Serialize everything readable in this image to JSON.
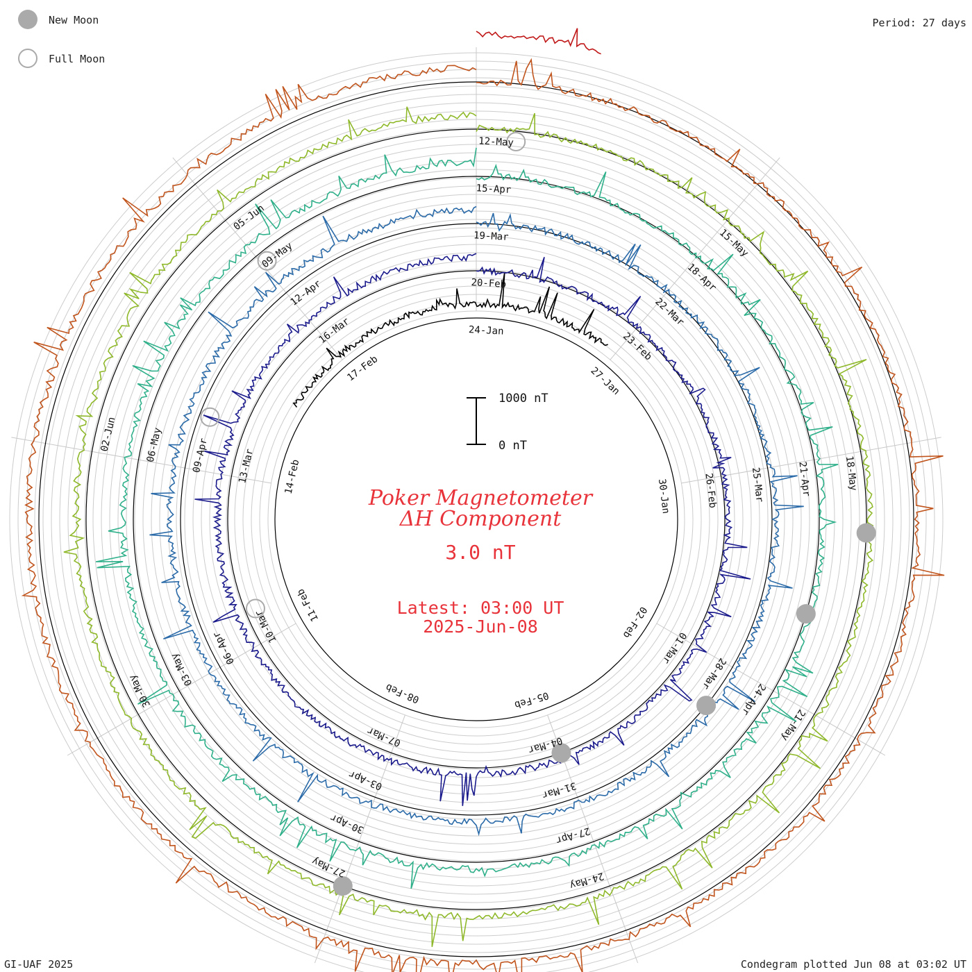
{
  "legend": {
    "new_moon_label": "New Moon",
    "full_moon_label": "Full Moon",
    "new_moon_color": "#aaaaaa",
    "full_moon_color": "#aaaaaa"
  },
  "header": {
    "period": "Period: 27 days"
  },
  "footer": {
    "credit": "GI-UAF 2025",
    "plotted": "Condegram plotted Jun 08 at 03:02 UT"
  },
  "center": {
    "title_line1": "Poker Magnetometer",
    "title_line2": "ΔH Component",
    "value": "3.0 nT",
    "latest": "Latest: 03:00 UT",
    "latest_date": "2025-Jun-08",
    "scale_top": "1000 nT",
    "scale_bottom": "0 nT",
    "text_color": "#e8333a"
  },
  "chart_data": {
    "type": "line",
    "period_days": 27,
    "scale_nT": [
      0,
      1000
    ],
    "rotations": [
      {
        "color": "#000000",
        "start_angle_deg": 302,
        "extent_deg": 95,
        "dates": [
          "24-Jan",
          "27-Jan",
          "30-Jan",
          "02-Feb",
          "05-Feb",
          "08-Feb",
          "11-Feb",
          "14-Feb",
          "17-Feb"
        ]
      },
      {
        "color": "#1a1a8c",
        "start_angle_deg": 0,
        "extent_deg": 360,
        "dates": [
          "20-Feb",
          "23-Feb",
          "26-Feb",
          "01-Mar",
          "04-Mar",
          "07-Mar",
          "10-Mar",
          "13-Mar",
          "16-Mar"
        ]
      },
      {
        "color": "#2a6aa8",
        "start_angle_deg": 0,
        "extent_deg": 360,
        "dates": [
          "19-Mar",
          "22-Mar",
          "25-Mar",
          "28-Mar",
          "31-Mar",
          "03-Apr",
          "06-Apr",
          "09-Apr",
          "12-Apr"
        ]
      },
      {
        "color": "#2fb08a",
        "start_angle_deg": 0,
        "extent_deg": 360,
        "dates": [
          "15-Apr",
          "18-Apr",
          "21-Apr",
          "24-Apr",
          "27-Apr",
          "30-Apr",
          "03-May",
          "06-May",
          "09-May"
        ]
      },
      {
        "color": "#8fb82a",
        "start_angle_deg": 0,
        "extent_deg": 360,
        "dates": [
          "12-May",
          "15-May",
          "18-May",
          "21-May",
          "24-May",
          "27-May",
          "30-May",
          "02-Jun",
          "05-Jun"
        ]
      },
      {
        "color": "#c0541c",
        "start_angle_deg": 0,
        "extent_deg": 360,
        "dates": []
      },
      {
        "color": "#c01818",
        "start_angle_deg": 0,
        "extent_deg": 15,
        "dates": []
      }
    ],
    "new_moons": [
      "29-Jan",
      "28-Feb",
      "29-Mar",
      "27-Apr",
      "27-May"
    ],
    "full_moons": [
      "13-Feb",
      "14-Mar",
      "13-Apr",
      "12-May"
    ]
  }
}
